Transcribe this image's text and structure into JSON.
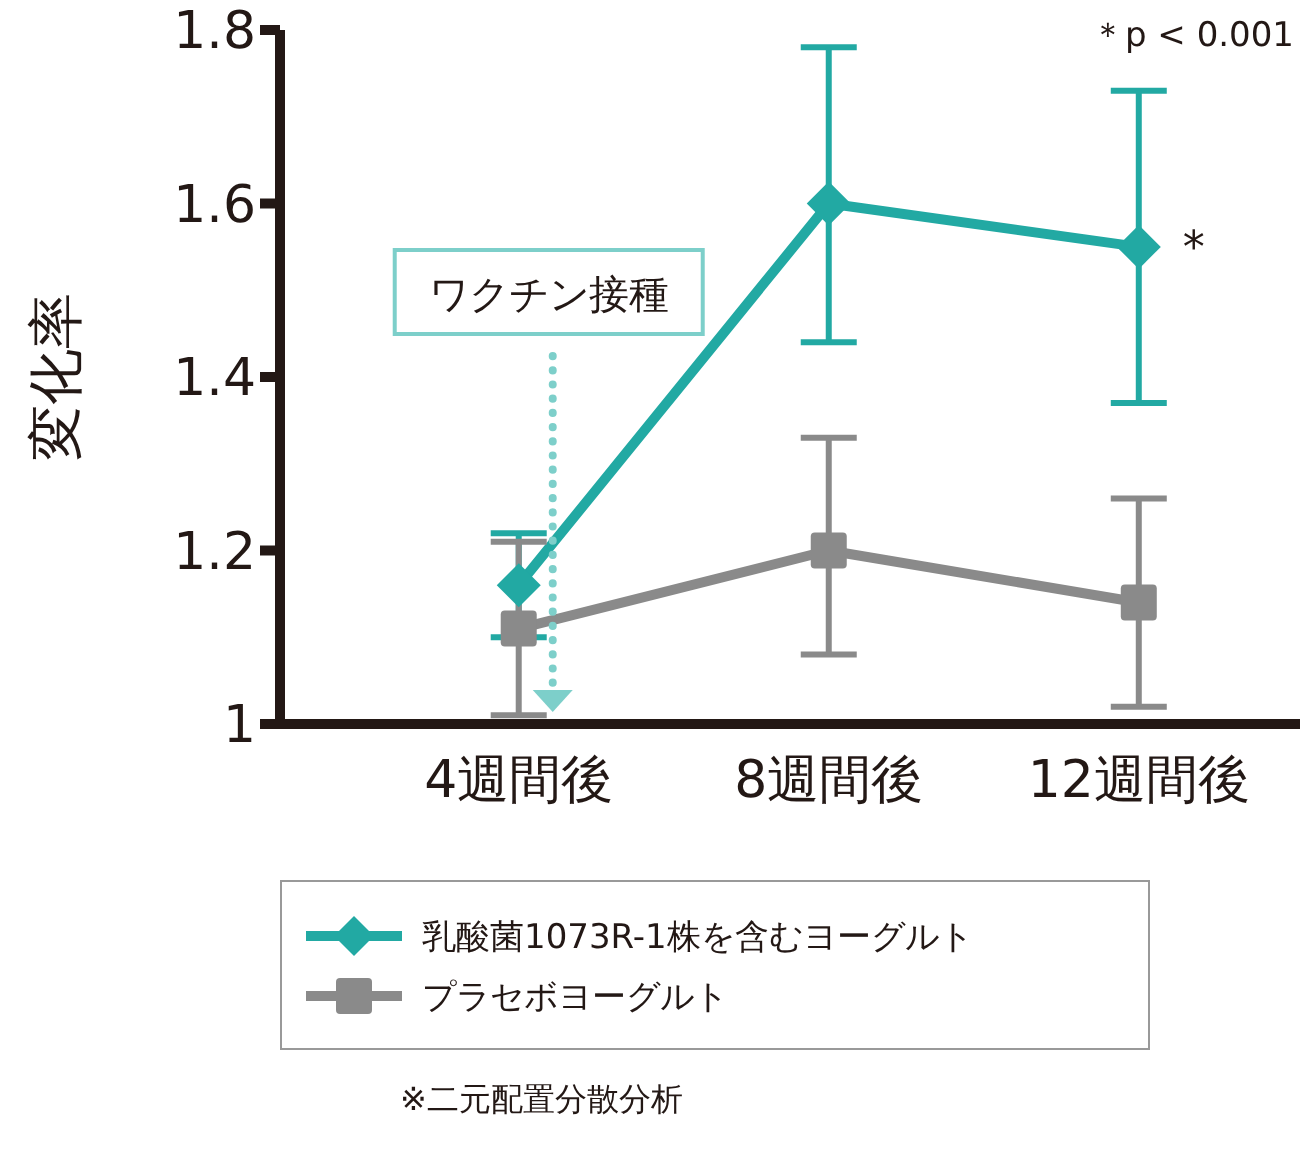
{
  "chart_data": {
    "type": "line",
    "ylabel": "変化率",
    "categories": [
      "4週間後",
      "8週間後",
      "12週間後"
    ],
    "series": [
      {
        "name": "乳酸菌1073R-1株を含むヨーグルト",
        "color": "#22a9a3",
        "marker": "diamond",
        "values": [
          1.16,
          1.6,
          1.55
        ],
        "errors": [
          0.06,
          [
            1.44,
            1.78
          ],
          [
            1.37,
            1.73
          ]
        ]
      },
      {
        "name": "プラセボヨーグルト",
        "color": "#8a8a8a",
        "marker": "square",
        "values": [
          1.11,
          1.2,
          1.14
        ],
        "errors": [
          [
            1.01,
            1.21
          ],
          [
            1.08,
            1.33
          ],
          [
            1.02,
            1.26
          ]
        ]
      }
    ],
    "ylim": [
      1,
      1.8
    ],
    "yticks": [
      1,
      1.2,
      1.4,
      1.6,
      1.8
    ],
    "grid": false,
    "legend": "bottom",
    "annotations": [
      "ワクチン接種",
      {
        "text": "*",
        "x": "12週間後",
        "y": 1.55
      },
      "＊p < 0.001",
      "※二元配置分散分析"
    ]
  }
}
